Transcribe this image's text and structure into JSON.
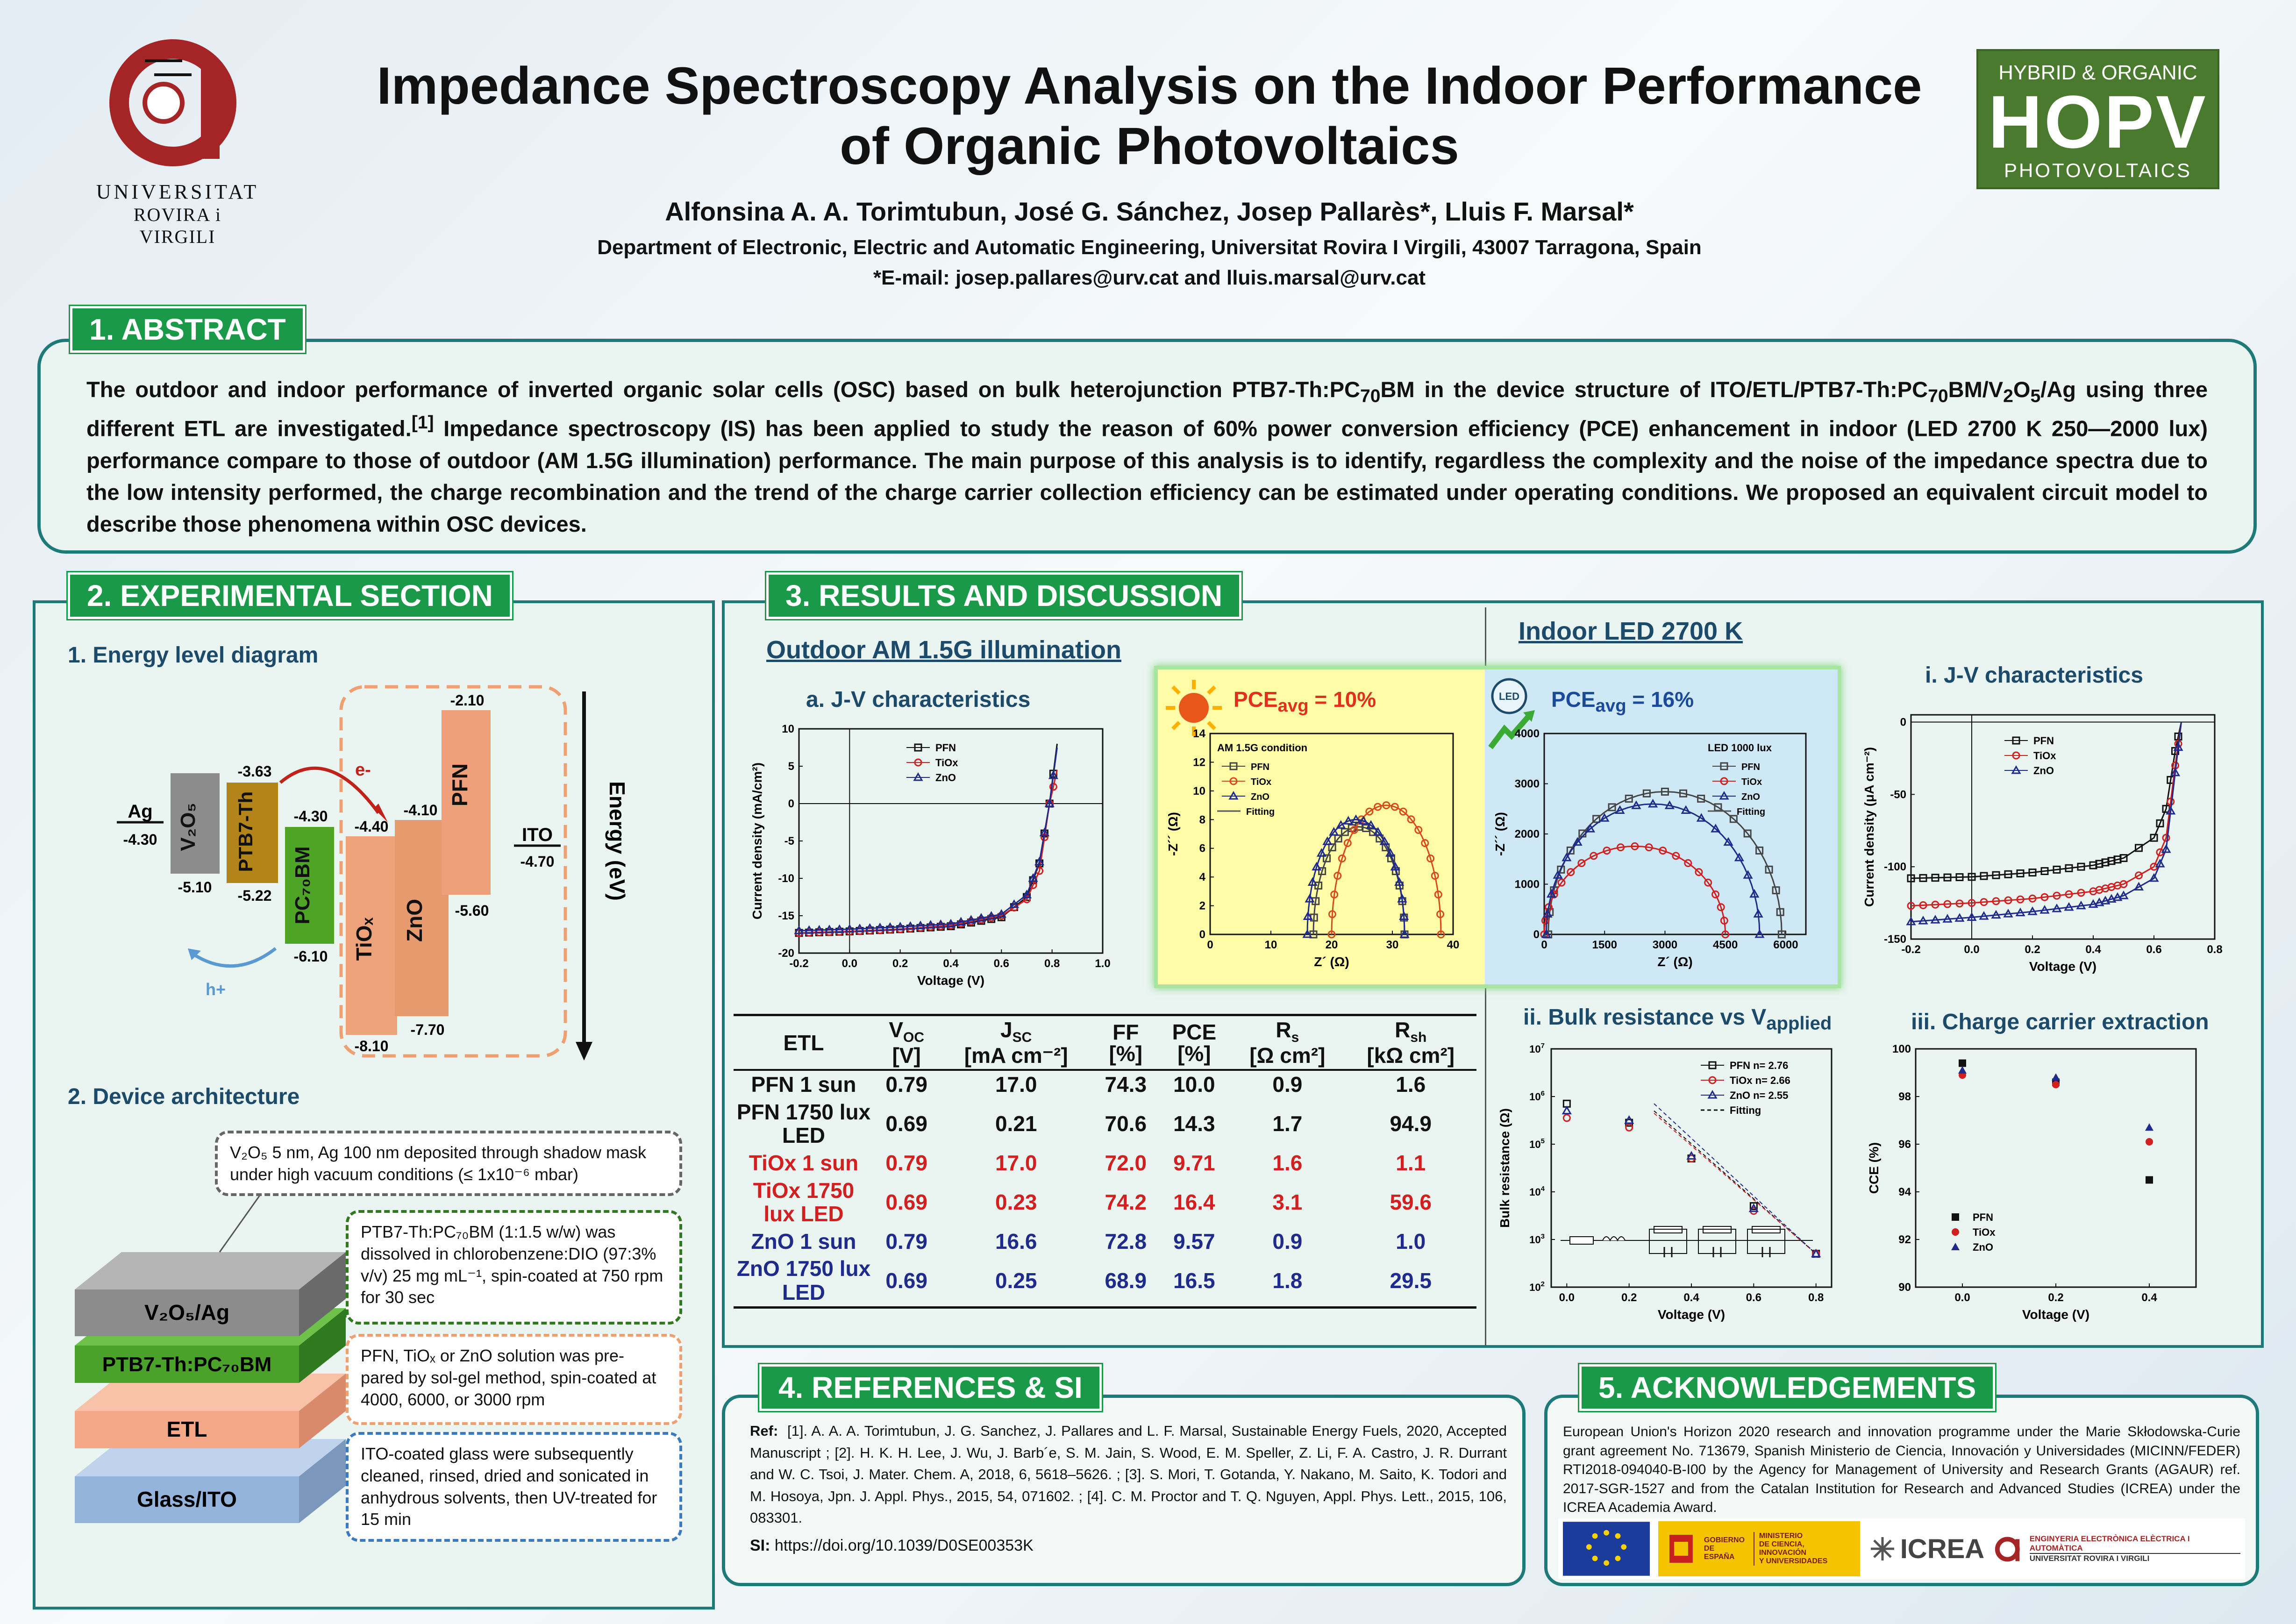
{
  "header": {
    "title_line1": "Impedance Spectroscopy Analysis on the Indoor Performance",
    "title_line2": "of Organic Photovoltaics",
    "authors": "Alfonsina A. A. Torimtubun, José G. Sánchez, Josep Pallarès*, Lluis F. Marsal*",
    "affiliation": "Department of Electronic, Electric and Automatic Engineering, Universitat Rovira I Virgili, 43007 Tarragona, Spain",
    "email": "*E-mail: josep.pallares@urv.cat and lluis.marsal@urv.cat",
    "univ_line1": "UNIVERSITAT",
    "univ_line2": "ROVIRA i VIRGILI",
    "hopv_top": "HYBRID & ORGANIC",
    "hopv_mid": "HOPV",
    "hopv_bot": "PHOTOVOLTAICS"
  },
  "abstract": {
    "heading": "1. ABSTRACT",
    "p1": "The outdoor and indoor performance of inverted organic solar cells (OSC) based on bulk heterojunction PTB7-Th:PC",
    "sub70a": "70",
    "p2": "BM in the device structure of ITO/ETL/PTB7-Th:PC",
    "sub70b": "70",
    "p3": "BM/V",
    "sub2": "2",
    "p4": "O",
    "sub5": "5",
    "p5": "/Ag using three different ETL are investigated.",
    "ref": "[1]",
    "p6": " Impedance spectroscopy (IS) has been applied to study the reason of 60% power conversion efficiency (PCE) enhancement in indoor (LED 2700 K 250—2000 lux) performance compare to those of outdoor (AM 1.5G illumination) performance. The main purpose of this analysis is to identify, regardless the complexity and the noise of the impedance spectra due to the low intensity performed, the charge recombination and the trend of the charge carrier collection efficiency can be estimated under operating conditions. We proposed an equivalent circuit model to describe those phenomena within OSC devices."
  },
  "experimental": {
    "heading": "2. EXPERIMENTAL SECTION",
    "energy_title": "1. Energy level diagram",
    "device_title": "2. Device architecture",
    "energy_axis": "Energy (eV)",
    "ag": "Ag",
    "ag_val": "-4.30",
    "ito": "ITO",
    "ito_val": "-4.70",
    "v2o5_top": "",
    "v2o5_bot": "-5.10",
    "ptb_top": "-3.63",
    "ptb_bot": "-5.22",
    "pcbm_top": "-4.30",
    "pcbm_bot": "-6.10",
    "tiox_top": "-4.40",
    "tiox_bot": "-8.10",
    "zno_top": "-4.10",
    "zno_bot": "-7.70",
    "pfn_top": "-2.10",
    "pfn_bot": "-5.60",
    "e_minus": "e-",
    "h_plus": "h+",
    "lbl_v2o5": "V₂O₅",
    "lbl_ptb": "PTB7-Th",
    "lbl_pcbm": "PC₇₀BM",
    "lbl_tiox": "TiOₓ",
    "lbl_zno": "ZnO",
    "lbl_pfn": "PFN",
    "layer_v2o5": "V₂O₅/Ag",
    "layer_ptb": "PTB7-Th:PC₇₀BM",
    "layer_etl": "ETL",
    "layer_ito": "Glass/ITO",
    "note1": "V₂O₅ 5 nm, Ag 100 nm deposited through shadow mask under high vacuum conditions (≤ 1x10⁻⁶ mbar)",
    "note2": "PTB7-Th:PC₇₀BM (1:1.5 w/w) was dissolved in chlorobenzene:DIO (97:3% v/v) 25 mg mL⁻¹, spin-coated at 750 rpm for 30 sec",
    "note3": "PFN, TiOₓ or ZnO solution was pre-pared by sol-gel method, spin-coated at 4000, 6000, or 3000 rpm",
    "note4": "ITO-coated glass were subsequently cleaned, rinsed, dried and sonicated in anhydrous solvents, then UV-treated for 15 min"
  },
  "results": {
    "heading": "3. RESULTS AND DISCUSSION",
    "outdoor_title": "Outdoor AM 1.5G illumination",
    "indoor_title": "Indoor LED 2700 K",
    "jv_title_a": "a. J-V characteristics",
    "jv_title_i": "i. J-V characteristics",
    "bulk_title": "ii. Bulk resistance vs V",
    "bulk_sub": "applied",
    "cce_title": "iii. Charge carrier extraction",
    "pce_out": "PCE",
    "pce_out_sub": "avg",
    "pce_out_val": " = 10%",
    "pce_in": "PCE",
    "pce_in_sub": "avg",
    "pce_in_val": " = 16%",
    "led_tag": "LED",
    "am_label": "AM 1.5G condition",
    "led_label": "LED 1000 lux",
    "fitting": "Fitting",
    "pfn": "PFN",
    "tiox": "TiOx",
    "zno": "ZnO",
    "pfn_n": "PFN  n= 2.76",
    "tiox_n": "TiOx n= 2.66",
    "zno_n": "ZnO  n= 2.55"
  },
  "table": {
    "headers": [
      "ETL",
      "V",
      "J",
      "FF",
      "PCE",
      "R",
      "R"
    ],
    "header_subs": [
      "",
      "OC",
      "SC",
      "",
      "",
      "s",
      "sh"
    ],
    "header_units": [
      "",
      "[V]",
      "[mA cm⁻²]",
      "[%]",
      "[%]",
      "[Ω cm²]",
      "[kΩ cm²]"
    ],
    "rows": [
      [
        "PFN 1 sun",
        "0.79",
        "17.0",
        "74.3",
        "10.0",
        "0.9",
        "1.6"
      ],
      [
        "PFN 1750 lux LED",
        "0.69",
        "0.21",
        "70.6",
        "14.3",
        "1.7",
        "94.9"
      ],
      [
        "TiOx 1 sun",
        "0.79",
        "17.0",
        "72.0",
        "9.71",
        "1.6",
        "1.1"
      ],
      [
        "TiOx 1750 lux LED",
        "0.69",
        "0.23",
        "74.2",
        "16.4",
        "3.1",
        "59.6"
      ],
      [
        "ZnO 1 sun",
        "0.79",
        "16.6",
        "72.8",
        "9.57",
        "0.9",
        "1.0"
      ],
      [
        "ZnO 1750 lux LED",
        "0.69",
        "0.25",
        "68.9",
        "16.5",
        "1.8",
        "29.5"
      ]
    ],
    "row_colors": [
      "#111111",
      "#111111",
      "#d21f1f",
      "#d21f1f",
      "#1e2a8c",
      "#1e2a8c"
    ]
  },
  "references": {
    "heading": "4. REFERENCES & SI",
    "label": "Ref:",
    "text": "[1]. A. A. A. Torimtubun, J. G. Sanchez, J. Pallares and L. F. Marsal, Sustainable Energy Fuels, 2020, Accepted Manuscript ; [2]. H. K. H. Lee, J. Wu, J. Barb´e, S. M. Jain, S. Wood, E. M. Speller, Z. Li, F. A. Castro, J. R. Durrant and W. C. Tsoi, J. Mater. Chem. A, 2018, 6, 5618–5626. ; [3]. S. Mori, T. Gotanda, Y. Nakano, M. Saito, K. Todori and M. Hosoya, Jpn. J. Appl. Phys., 2015, 54, 071602. ; [4]. C. M. Proctor and T. Q. Nguyen, Appl. Phys. Lett., 2015, 106, 083301.",
    "si_label": "SI:",
    "si_text": "https://doi.org/10.1039/D0SE00353K"
  },
  "ack": {
    "heading": "5. ACKNOWLEDGEMENTS",
    "text": "European Union's Horizon 2020 research and innovation programme under the Marie Skłodowska-Curie grant agreement No. 713679, Spanish Ministerio de Ciencia, Innovación y Universidades (MICINN/FEDER) RTI2018-094040-B-I00 by the Agency for Management of University and Research Grants (AGAUR) ref. 2017-SGR-1527 and from the Catalan Institution for Research and Advanced Studies (ICREA) under the ICREA Academia Award.",
    "gob1": "GOBIERNO",
    "gob2": "DE ESPAÑA",
    "min1": "MINISTERIO",
    "min2": "DE CIENCIA, INNOVACIÓN",
    "min3": "Y UNIVERSIDADES",
    "icrea": "ICREA",
    "urv1": "ENGINYERIA ELECTRÒNICA ELÈCTRICA I AUTOMÀTICA",
    "urv2": "UNIVERSITAT ROVIRA I VIRGILI"
  },
  "colors": {
    "teal": "#1d7a78",
    "green": "#1a9a48",
    "navy": "#1b4a6a",
    "red": "#d21f1f",
    "blue": "#1e2a8c"
  },
  "chart_data": [
    {
      "type": "line",
      "title": "a. J-V characteristics",
      "xlabel": "Voltage (V)",
      "ylabel": "Current density (mA/cm²)",
      "xlim": [
        -0.2,
        1.0
      ],
      "ylim": [
        -20,
        10
      ],
      "xticks": [
        -0.2,
        0.0,
        0.2,
        0.4,
        0.6,
        0.8,
        1.0
      ],
      "yticks": [
        10,
        5,
        0,
        -5,
        -10,
        -15,
        -20
      ],
      "series": [
        {
          "name": "PFN",
          "color": "#111111",
          "x": [
            -0.2,
            0.0,
            0.2,
            0.4,
            0.6,
            0.7,
            0.75,
            0.79,
            0.82
          ],
          "y": [
            -17.3,
            -17.1,
            -16.8,
            -16.4,
            -15.2,
            -12.5,
            -8.0,
            0.0,
            8.0
          ]
        },
        {
          "name": "TiOx",
          "color": "#d21f1f",
          "x": [
            -0.2,
            0.0,
            0.2,
            0.4,
            0.6,
            0.7,
            0.75,
            0.79,
            0.82
          ],
          "y": [
            -17.3,
            -17.1,
            -16.8,
            -16.3,
            -15.0,
            -12.8,
            -9.0,
            0.0,
            4.5
          ]
        },
        {
          "name": "ZnO",
          "color": "#1e2a8c",
          "x": [
            -0.2,
            0.0,
            0.2,
            0.4,
            0.6,
            0.7,
            0.75,
            0.79,
            0.82
          ],
          "y": [
            -17.0,
            -16.8,
            -16.5,
            -16.1,
            -14.8,
            -12.2,
            -7.8,
            0.0,
            7.5
          ]
        }
      ]
    },
    {
      "type": "scatter",
      "title": "Nyquist AM 1.5G",
      "xlabel": "Z´ (Ω)",
      "ylabel": "-Z´´ (Ω)",
      "xlim": [
        0,
        40
      ],
      "ylim": [
        0,
        14
      ],
      "xticks": [
        0,
        10,
        20,
        30,
        40
      ],
      "yticks": [
        0,
        2,
        4,
        6,
        8,
        10,
        12,
        14
      ],
      "series": [
        {
          "name": "PFN",
          "color": "#444444",
          "center": 24.5,
          "radius": 7.5
        },
        {
          "name": "TiOx",
          "color": "#d84a1a",
          "center": 29.0,
          "radius": 9.0
        },
        {
          "name": "ZnO",
          "color": "#1e2a8c",
          "center": 24.0,
          "radius": 8.0
        }
      ]
    },
    {
      "type": "scatter",
      "title": "Nyquist LED 1000 lux",
      "xlabel": "Z´ (Ω)",
      "ylabel": "-Z´´ (Ω)",
      "xlim": [
        0,
        6500
      ],
      "ylim": [
        0,
        4000
      ],
      "xticks": [
        0,
        1500,
        3000,
        4500,
        6000
      ],
      "yticks": [
        0,
        1000,
        2000,
        3000,
        4000
      ],
      "series": [
        {
          "name": "PFN",
          "color": "#444444",
          "center": 3000,
          "radius": 2900
        },
        {
          "name": "TiOx",
          "color": "#d21f1f",
          "center": 2250,
          "radius": 2250
        },
        {
          "name": "ZnO",
          "color": "#1e2a8c",
          "center": 2700,
          "radius": 2650
        }
      ]
    },
    {
      "type": "line",
      "title": "i. J-V characteristics",
      "xlabel": "Voltage (V)",
      "ylabel": "Current density (μA cm⁻²)",
      "xlim": [
        -0.2,
        0.8
      ],
      "ylim": [
        -150,
        5
      ],
      "xticks": [
        -0.2,
        0.0,
        0.2,
        0.4,
        0.6,
        0.8
      ],
      "yticks": [
        0,
        -50,
        -100,
        -150
      ],
      "series": [
        {
          "name": "PFN",
          "color": "#111111",
          "x": [
            -0.2,
            0.0,
            0.2,
            0.4,
            0.5,
            0.6,
            0.64,
            0.67,
            0.69
          ],
          "y": [
            -108,
            -107,
            -104,
            -99,
            -94,
            -80,
            -60,
            -20,
            0
          ]
        },
        {
          "name": "TiOx",
          "color": "#d21f1f",
          "x": [
            -0.2,
            0.0,
            0.2,
            0.4,
            0.5,
            0.6,
            0.64,
            0.67,
            0.69
          ],
          "y": [
            -127,
            -125,
            -122,
            -117,
            -112,
            -100,
            -80,
            -30,
            0
          ]
        },
        {
          "name": "ZnO",
          "color": "#1e2a8c",
          "x": [
            -0.2,
            0.0,
            0.2,
            0.4,
            0.5,
            0.6,
            0.64,
            0.67,
            0.69
          ],
          "y": [
            -138,
            -135,
            -131,
            -126,
            -120,
            -108,
            -88,
            -35,
            0
          ]
        }
      ]
    },
    {
      "type": "scatter",
      "title": "ii. Bulk resistance vs Vapplied",
      "xlabel": "Voltage (V)",
      "ylabel": "Bulk resistance (Ω)",
      "xlim": [
        -0.05,
        0.85
      ],
      "ylog": true,
      "ylim_exp": [
        2,
        7
      ],
      "xticks": [
        0.0,
        0.2,
        0.4,
        0.6,
        0.8
      ],
      "series": [
        {
          "name": "PFN  n= 2.76",
          "color": "#111111",
          "x": [
            0.0,
            0.2,
            0.4,
            0.6,
            0.8
          ],
          "y_exp": [
            5.85,
            5.45,
            4.7,
            3.7,
            2.7
          ]
        },
        {
          "name": "TiOx n= 2.66",
          "color": "#d21f1f",
          "x": [
            0.0,
            0.2,
            0.4,
            0.6,
            0.8
          ],
          "y_exp": [
            5.55,
            5.35,
            4.7,
            3.6,
            2.7
          ]
        },
        {
          "name": "ZnO  n= 2.55",
          "color": "#1e2a8c",
          "x": [
            0.0,
            0.2,
            0.4,
            0.6,
            0.8
          ],
          "y_exp": [
            5.7,
            5.5,
            4.75,
            3.65,
            2.7
          ]
        }
      ]
    },
    {
      "type": "scatter",
      "title": "iii. Charge carrier extraction",
      "xlabel": "Voltage (V)",
      "ylabel": "CCE (%)",
      "xlim": [
        -0.1,
        0.5
      ],
      "ylim": [
        90,
        100
      ],
      "xticks": [
        0.0,
        0.2,
        0.4
      ],
      "yticks": [
        90,
        92,
        94,
        96,
        98,
        100
      ],
      "series": [
        {
          "name": "PFN",
          "color": "#111111",
          "x": [
            0.0,
            0.2,
            0.4
          ],
          "y": [
            99.4,
            98.6,
            94.5
          ]
        },
        {
          "name": "TiOx",
          "color": "#d21f1f",
          "x": [
            0.0,
            0.2,
            0.4
          ],
          "y": [
            98.9,
            98.5,
            96.1
          ]
        },
        {
          "name": "ZnO",
          "color": "#1e2a8c",
          "x": [
            0.0,
            0.2,
            0.4
          ],
          "y": [
            99.1,
            98.8,
            96.7
          ]
        }
      ]
    }
  ]
}
